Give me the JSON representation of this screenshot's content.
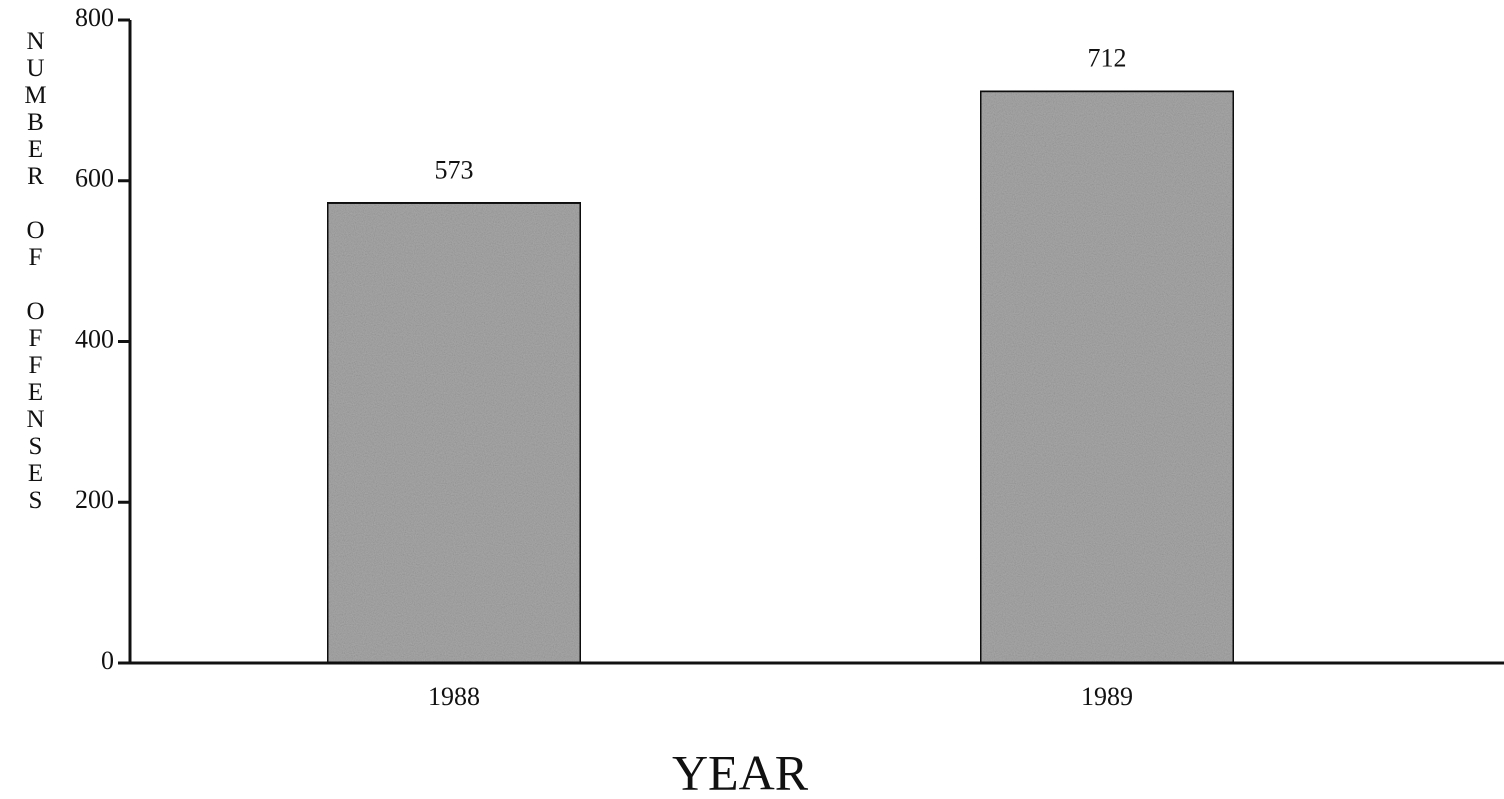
{
  "chart_data": {
    "type": "bar",
    "x_label": "YEAR",
    "y_label": "NUMBER OF OFFENSES",
    "categories": [
      "1988",
      "1989"
    ],
    "values": [
      573,
      712
    ],
    "color": "#a9a9a9",
    "ylim": [
      0,
      800
    ],
    "yticks": [
      0,
      200,
      400,
      600,
      800
    ],
    "grid": false
  }
}
